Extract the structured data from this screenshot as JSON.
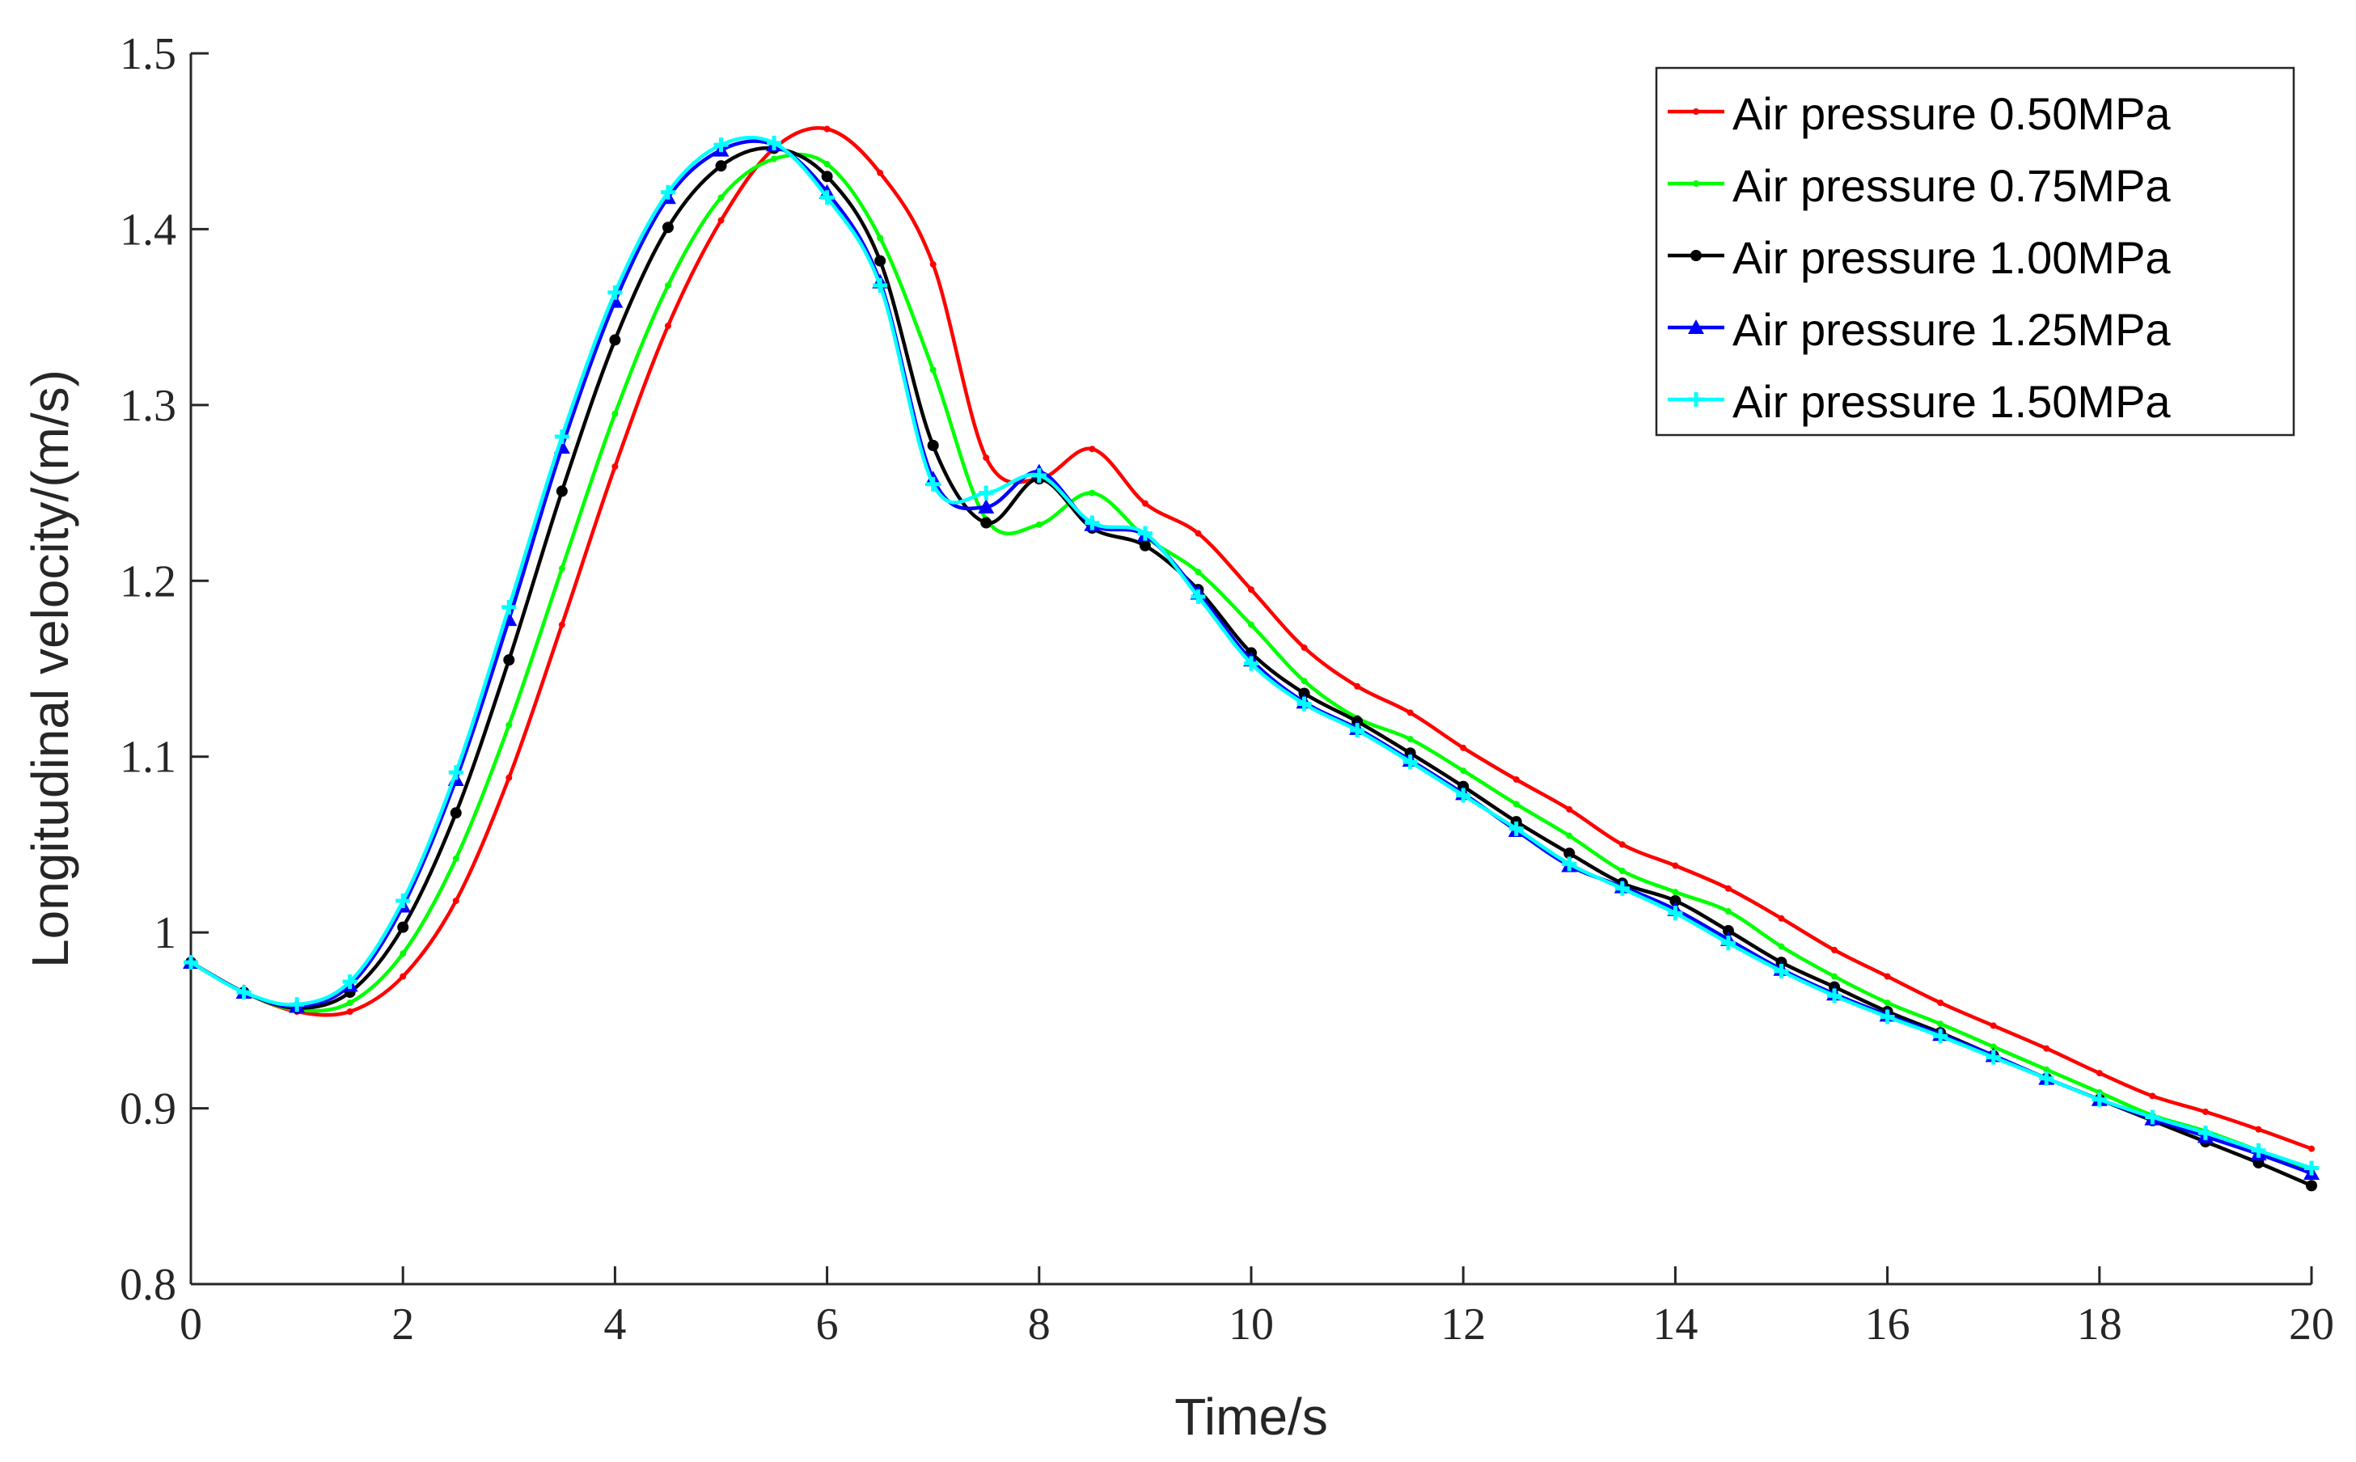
{
  "chart_data": {
    "type": "line",
    "title": "",
    "xlabel": "Time/s",
    "ylabel": "Longitudinal velocity/(m/s)",
    "xlim": [
      0,
      20
    ],
    "ylim": [
      0.8,
      1.5
    ],
    "xticks": [
      0,
      2,
      4,
      6,
      8,
      10,
      12,
      14,
      16,
      18,
      20
    ],
    "xtick_labels": [
      "0",
      "2",
      "4",
      "6",
      "8",
      "10",
      "12",
      "14",
      "16",
      "18",
      "20"
    ],
    "yticks": [
      0.8,
      0.9,
      1.0,
      1.1,
      1.2,
      1.3,
      1.4,
      1.5
    ],
    "ytick_labels": [
      "0.8",
      "0.9",
      "1",
      "1.1",
      "1.2",
      "1.3",
      "1.4",
      "1.5"
    ],
    "grid": false,
    "legend_position": "top-right",
    "x": [
      0,
      0.5,
      1,
      1.5,
      2,
      2.5,
      3,
      3.5,
      4,
      4.5,
      5,
      5.5,
      6,
      6.5,
      7,
      7.5,
      8,
      8.5,
      9,
      9.5,
      10,
      10.5,
      11,
      11.5,
      12,
      12.5,
      13,
      13.5,
      14,
      14.5,
      15,
      15.5,
      16,
      16.5,
      17,
      17.5,
      18,
      18.5,
      19,
      19.5,
      20
    ],
    "series": [
      {
        "name": "Air pressure 0.50MPa",
        "color": "#ff0000",
        "marker": "dot",
        "values": [
          0.983,
          0.966,
          0.955,
          0.955,
          0.975,
          1.018,
          1.088,
          1.175,
          1.265,
          1.345,
          1.405,
          1.446,
          1.457,
          1.432,
          1.38,
          1.27,
          1.258,
          1.275,
          1.244,
          1.227,
          1.195,
          1.162,
          1.14,
          1.125,
          1.105,
          1.087,
          1.07,
          1.05,
          1.038,
          1.025,
          1.008,
          0.99,
          0.975,
          0.96,
          0.947,
          0.934,
          0.92,
          0.907,
          0.898,
          0.888,
          0.877
        ]
      },
      {
        "name": "Air pressure 0.75MPa",
        "color": "#00ff00",
        "marker": "dot",
        "values": [
          0.983,
          0.966,
          0.956,
          0.96,
          0.988,
          1.042,
          1.118,
          1.207,
          1.295,
          1.368,
          1.418,
          1.44,
          1.437,
          1.395,
          1.32,
          1.235,
          1.232,
          1.25,
          1.225,
          1.205,
          1.175,
          1.143,
          1.122,
          1.11,
          1.092,
          1.073,
          1.055,
          1.035,
          1.023,
          1.012,
          0.992,
          0.975,
          0.96,
          0.948,
          0.935,
          0.922,
          0.909,
          0.896,
          0.887,
          0.876,
          0.865
        ]
      },
      {
        "name": "Air pressure 1.00MPa",
        "color": "#000000",
        "marker": "circle",
        "values": [
          0.983,
          0.966,
          0.957,
          0.966,
          1.003,
          1.068,
          1.155,
          1.251,
          1.337,
          1.401,
          1.436,
          1.446,
          1.43,
          1.382,
          1.277,
          1.233,
          1.258,
          1.23,
          1.22,
          1.195,
          1.159,
          1.136,
          1.12,
          1.102,
          1.083,
          1.063,
          1.045,
          1.028,
          1.018,
          1.001,
          0.983,
          0.969,
          0.955,
          0.943,
          0.93,
          0.917,
          0.905,
          0.893,
          0.881,
          0.869,
          0.856
        ]
      },
      {
        "name": "Air pressure 1.25MPa",
        "color": "#0000ff",
        "marker": "triangle",
        "values": [
          0.983,
          0.966,
          0.958,
          0.97,
          1.015,
          1.087,
          1.178,
          1.276,
          1.359,
          1.418,
          1.445,
          1.448,
          1.421,
          1.37,
          1.258,
          1.242,
          1.262,
          1.232,
          1.226,
          1.193,
          1.155,
          1.131,
          1.116,
          1.098,
          1.079,
          1.058,
          1.038,
          1.026,
          1.013,
          0.996,
          0.979,
          0.965,
          0.953,
          0.942,
          0.93,
          0.917,
          0.905,
          0.894,
          0.884,
          0.874,
          0.863
        ]
      },
      {
        "name": "Air pressure 1.50MPa",
        "color": "#00ffff",
        "marker": "cross",
        "values": [
          0.983,
          0.966,
          0.959,
          0.972,
          1.018,
          1.091,
          1.185,
          1.282,
          1.364,
          1.421,
          1.448,
          1.449,
          1.418,
          1.368,
          1.255,
          1.25,
          1.26,
          1.233,
          1.227,
          1.191,
          1.153,
          1.13,
          1.115,
          1.097,
          1.078,
          1.059,
          1.039,
          1.025,
          1.011,
          0.994,
          0.978,
          0.964,
          0.952,
          0.941,
          0.929,
          0.917,
          0.905,
          0.895,
          0.886,
          0.876,
          0.866
        ]
      }
    ]
  }
}
